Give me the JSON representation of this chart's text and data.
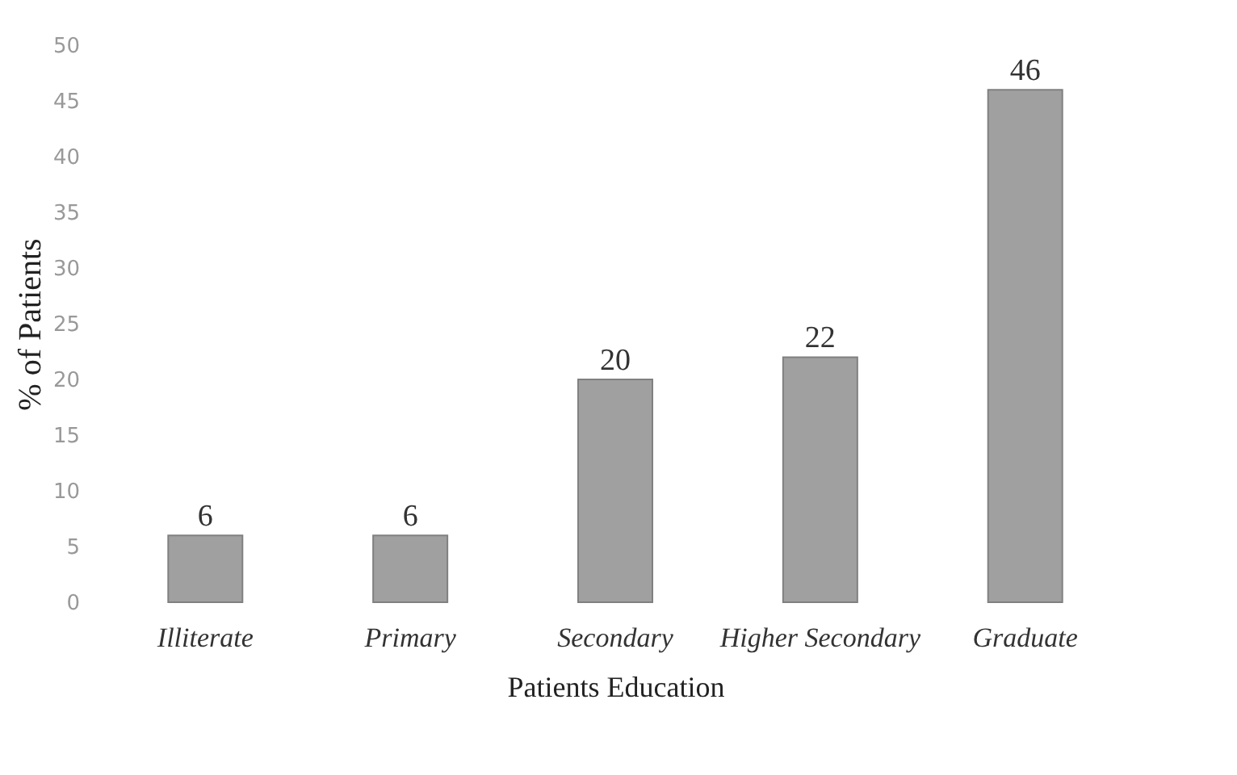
{
  "chart_data": {
    "type": "bar",
    "xlabel": "Patients Education",
    "ylabel": "% of Patients",
    "categories": [
      "Illiterate",
      "Primary",
      "Secondary",
      "Higher Secondary",
      "Graduate"
    ],
    "values": [
      6,
      6,
      20,
      22,
      46
    ],
    "color": "#a0a0a0",
    "ylim": [
      0,
      50
    ],
    "yticks": [
      0,
      5,
      10,
      15,
      20,
      25,
      30,
      35,
      40,
      45,
      50
    ],
    "data_labels": true
  }
}
